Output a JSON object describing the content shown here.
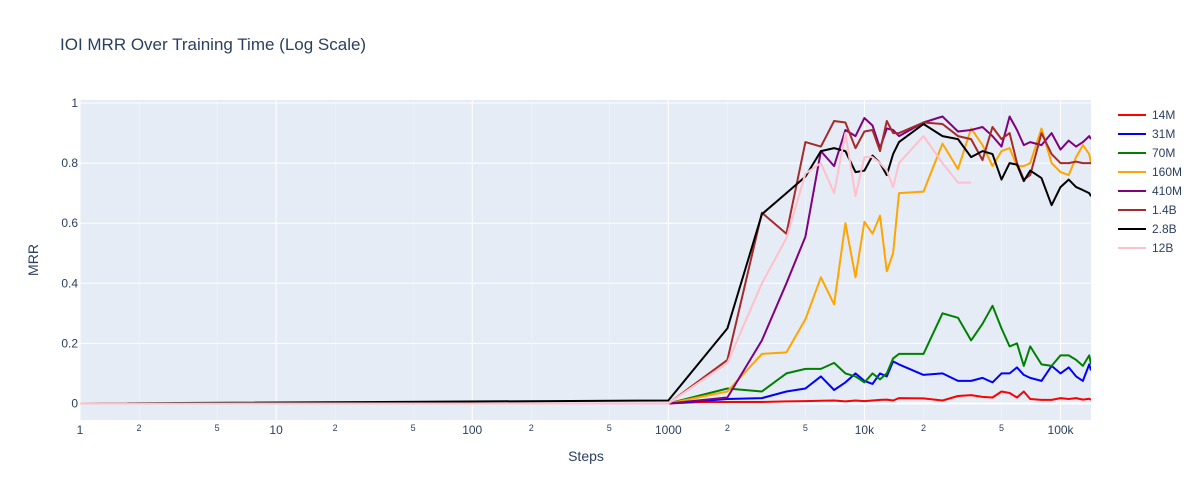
{
  "chart_data": {
    "type": "line",
    "title": "IOI MRR Over Training Time (Log Scale)",
    "xlabel": "Steps",
    "ylabel": "MRR",
    "x_scale": "log",
    "xlim": [
      1,
      143000
    ],
    "ylim": [
      -0.055,
      1.01
    ],
    "grid": true,
    "legend_position": "right",
    "x_major_ticks": [
      {
        "value": 1,
        "label": "1"
      },
      {
        "value": 10,
        "label": "10"
      },
      {
        "value": 100,
        "label": "100"
      },
      {
        "value": 1000,
        "label": "1000"
      },
      {
        "value": 10000,
        "label": "10k"
      },
      {
        "value": 100000,
        "label": "100k"
      }
    ],
    "x_minor_ticks": [
      {
        "value": 2,
        "label": "2"
      },
      {
        "value": 5,
        "label": "5"
      },
      {
        "value": 20,
        "label": "2"
      },
      {
        "value": 50,
        "label": "5"
      },
      {
        "value": 200,
        "label": "2"
      },
      {
        "value": 500,
        "label": "5"
      },
      {
        "value": 2000,
        "label": "2"
      },
      {
        "value": 5000,
        "label": "5"
      },
      {
        "value": 20000,
        "label": "2"
      },
      {
        "value": 50000,
        "label": "5"
      }
    ],
    "y_ticks": [
      {
        "value": 0,
        "label": "0"
      },
      {
        "value": 0.2,
        "label": "0.2"
      },
      {
        "value": 0.4,
        "label": "0.4"
      },
      {
        "value": 0.6,
        "label": "0.6"
      },
      {
        "value": 0.8,
        "label": "0.8"
      },
      {
        "value": 1,
        "label": "1"
      }
    ],
    "series": [
      {
        "name": "14M",
        "color": "#ff0000",
        "x": [
          1,
          1000,
          1500,
          2000,
          3000,
          4000,
          5000,
          6000,
          7000,
          8000,
          9000,
          10000,
          11000,
          12000,
          13000,
          14000,
          15000,
          20000,
          25000,
          30000,
          35000,
          40000,
          45000,
          50000,
          55000,
          60000,
          65000,
          70000,
          80000,
          90000,
          100000,
          110000,
          120000,
          130000,
          140000,
          143000
        ],
        "y": [
          0,
          0,
          0.005,
          0.005,
          0.005,
          0.007,
          0.008,
          0.009,
          0.01,
          0.007,
          0.01,
          0.008,
          0.01,
          0.012,
          0.013,
          0.01,
          0.018,
          0.017,
          0.01,
          0.025,
          0.028,
          0.022,
          0.02,
          0.04,
          0.035,
          0.02,
          0.04,
          0.015,
          0.012,
          0.012,
          0.018,
          0.015,
          0.018,
          0.013,
          0.016,
          0.012
        ]
      },
      {
        "name": "31M",
        "color": "#0000ff",
        "x": [
          1,
          1000,
          2000,
          3000,
          4000,
          5000,
          6000,
          7000,
          8000,
          9000,
          10000,
          11000,
          12000,
          13000,
          14000,
          15000,
          20000,
          25000,
          30000,
          35000,
          40000,
          45000,
          50000,
          55000,
          60000,
          65000,
          70000,
          80000,
          90000,
          100000,
          110000,
          120000,
          130000,
          140000,
          143000
        ],
        "y": [
          0,
          0,
          0.015,
          0.018,
          0.04,
          0.05,
          0.09,
          0.045,
          0.07,
          0.1,
          0.075,
          0.065,
          0.1,
          0.09,
          0.14,
          0.13,
          0.095,
          0.1,
          0.075,
          0.075,
          0.085,
          0.07,
          0.1,
          0.1,
          0.12,
          0.095,
          0.085,
          0.075,
          0.125,
          0.1,
          0.12,
          0.09,
          0.075,
          0.13,
          0.11
        ]
      },
      {
        "name": "70M",
        "color": "#008000",
        "x": [
          1,
          1000,
          2000,
          3000,
          4000,
          5000,
          6000,
          7000,
          8000,
          9000,
          10000,
          11000,
          12000,
          13000,
          14000,
          15000,
          20000,
          25000,
          30000,
          35000,
          40000,
          45000,
          50000,
          55000,
          60000,
          65000,
          70000,
          80000,
          90000,
          100000,
          110000,
          120000,
          130000,
          140000,
          143000
        ],
        "y": [
          0,
          0,
          0.05,
          0.04,
          0.1,
          0.115,
          0.115,
          0.135,
          0.1,
          0.09,
          0.07,
          0.1,
          0.08,
          0.1,
          0.15,
          0.165,
          0.165,
          0.3,
          0.285,
          0.21,
          0.265,
          0.325,
          0.25,
          0.19,
          0.2,
          0.125,
          0.19,
          0.13,
          0.125,
          0.16,
          0.16,
          0.145,
          0.125,
          0.16,
          0.13
        ]
      },
      {
        "name": "160M",
        "color": "#ffa500",
        "x": [
          1,
          1000,
          2000,
          3000,
          4000,
          5000,
          6000,
          7000,
          8000,
          9000,
          10000,
          11000,
          12000,
          13000,
          14000,
          15000,
          20000,
          25000,
          30000,
          35000,
          40000,
          45000,
          50000,
          55000,
          60000,
          65000,
          70000,
          80000,
          90000,
          100000,
          110000,
          120000,
          130000,
          140000,
          143000
        ],
        "y": [
          0,
          0,
          0.04,
          0.165,
          0.17,
          0.28,
          0.42,
          0.33,
          0.6,
          0.42,
          0.605,
          0.565,
          0.625,
          0.44,
          0.5,
          0.7,
          0.705,
          0.865,
          0.78,
          0.915,
          0.86,
          0.79,
          0.84,
          0.85,
          0.79,
          0.79,
          0.8,
          0.915,
          0.8,
          0.77,
          0.76,
          0.82,
          0.86,
          0.83,
          0.8
        ]
      },
      {
        "name": "410M",
        "color": "#800080",
        "x": [
          1,
          1000,
          2000,
          3000,
          4000,
          5000,
          6000,
          7000,
          8000,
          9000,
          10000,
          11000,
          12000,
          13000,
          14000,
          15000,
          20000,
          25000,
          30000,
          35000,
          40000,
          45000,
          50000,
          55000,
          60000,
          65000,
          70000,
          80000,
          90000,
          100000,
          110000,
          120000,
          130000,
          140000,
          143000
        ],
        "y": [
          0,
          0,
          0.02,
          0.21,
          0.4,
          0.555,
          0.84,
          0.79,
          0.91,
          0.89,
          0.95,
          0.925,
          0.85,
          0.915,
          0.91,
          0.89,
          0.935,
          0.955,
          0.905,
          0.91,
          0.92,
          0.89,
          0.855,
          0.955,
          0.91,
          0.86,
          0.87,
          0.86,
          0.9,
          0.845,
          0.875,
          0.855,
          0.87,
          0.89,
          0.88
        ]
      },
      {
        "name": "1.4B",
        "color": "#a52a2a",
        "x": [
          1,
          1000,
          2000,
          3000,
          4000,
          5000,
          6000,
          7000,
          8000,
          9000,
          10000,
          11000,
          12000,
          13000,
          14000,
          15000,
          20000,
          25000,
          30000,
          35000,
          40000,
          45000,
          50000,
          55000,
          60000,
          65000,
          70000,
          80000,
          90000,
          100000,
          110000,
          120000,
          130000,
          140000,
          143000
        ],
        "y": [
          0,
          0,
          0.145,
          0.635,
          0.565,
          0.87,
          0.855,
          0.94,
          0.935,
          0.85,
          0.905,
          0.91,
          0.84,
          0.94,
          0.9,
          0.9,
          0.935,
          0.93,
          0.89,
          0.88,
          0.81,
          0.92,
          0.88,
          0.9,
          0.8,
          0.745,
          0.76,
          0.9,
          0.83,
          0.8,
          0.8,
          0.805,
          0.8,
          0.8,
          0.8
        ]
      },
      {
        "name": "2.8B",
        "color": "#000000",
        "x": [
          1,
          1000,
          2000,
          3000,
          4000,
          5000,
          6000,
          7000,
          8000,
          9000,
          10000,
          11000,
          12000,
          13000,
          14000,
          15000,
          20000,
          25000,
          30000,
          35000,
          40000,
          45000,
          50000,
          55000,
          60000,
          65000,
          70000,
          80000,
          90000,
          100000,
          110000,
          120000,
          130000,
          140000,
          143000
        ],
        "y": [
          0,
          0.01,
          0.25,
          0.63,
          0.7,
          0.755,
          0.84,
          0.85,
          0.84,
          0.77,
          0.775,
          0.825,
          0.8,
          0.76,
          0.83,
          0.87,
          0.93,
          0.89,
          0.88,
          0.82,
          0.84,
          0.83,
          0.745,
          0.8,
          0.795,
          0.74,
          0.775,
          0.75,
          0.66,
          0.72,
          0.745,
          0.72,
          0.71,
          0.7,
          0.69
        ]
      },
      {
        "name": "12B",
        "color": "#ffc0cb",
        "x": [
          1,
          1000,
          2000,
          3000,
          4000,
          5000,
          6000,
          7000,
          8000,
          9000,
          10000,
          11000,
          12000,
          13000,
          14000,
          15000,
          20000,
          25000,
          30000,
          35000
        ],
        "y": [
          0,
          0,
          0.135,
          0.4,
          0.55,
          0.765,
          0.8,
          0.7,
          0.9,
          0.69,
          0.82,
          0.82,
          0.8,
          0.775,
          0.72,
          0.8,
          0.89,
          0.8,
          0.735,
          0.735
        ]
      }
    ]
  }
}
